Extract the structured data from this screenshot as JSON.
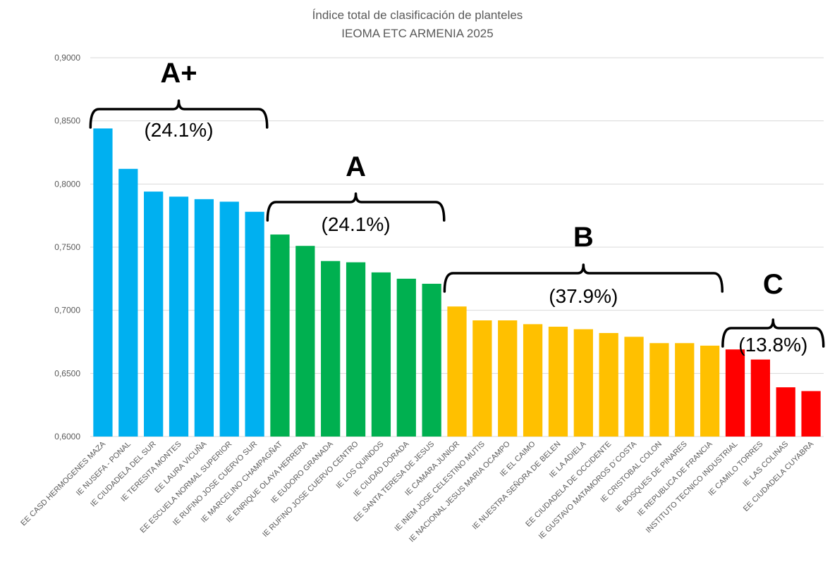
{
  "chart_data": {
    "type": "bar",
    "title": "Índice total de clasificación de planteles",
    "subtitle": "IEOMA ETC ARMENIA 2025",
    "xlabel": "",
    "ylabel": "",
    "ylim": [
      0.6,
      0.9
    ],
    "yticks": [
      "0,6000",
      "0,6500",
      "0,7000",
      "0,7500",
      "0,8000",
      "0,8500",
      "0,9000"
    ],
    "ytick_values": [
      0.6,
      0.65,
      0.7,
      0.75,
      0.8,
      0.85,
      0.9
    ],
    "grid": true,
    "legend": "none",
    "categories": [
      "EE CASD HERMOGENES MAZA",
      "IE NUSEFA - PONAL",
      "IE CIUDADELA DEL SUR",
      "IE TERESITA MONTES",
      "EE LAURA VICUÑA",
      "EE ESCUELA NORMAL SUPERIOR",
      "IE RUFINO JOSE CUERVO SUR",
      "IE MARCELINO CHAMPAGÑAT",
      "IE ENRIQUE OLAYA HERRERA",
      "IE EUDORO GRANADA",
      "IE RUFINO JOSE CUERVO CENTRO",
      "IE LOS QUINDOS",
      "IE CIUDAD DORADA",
      "EE SANTA TERESA DE JESUS",
      "IE CAMARA JUNIOR",
      "IE INEM JOSE CELESTINO MUTIS",
      "IE NACIONAL JESUS MARIA OCAMPO",
      "IE EL CAIMO",
      "IE NUESTRA SEÑORA DE BELEN",
      "IE LA ADIELA",
      "EE CIUDADELA DE OCCIDENTE",
      "IE GUSTAVO MATAMOROS D´COSTA",
      "IE CRISTOBAL COLON",
      "IE BOSQUES DE PINARES",
      "IE REPUBLICA DE FRANCIA",
      "INSTITUTO TECNICO INDUSTRIAL",
      "IE CAMILO TORRES",
      "IE LAS COLINAS",
      "EE CIUDADELA CUYABRA"
    ],
    "values": [
      0.844,
      0.812,
      0.794,
      0.79,
      0.788,
      0.786,
      0.778,
      0.76,
      0.751,
      0.739,
      0.738,
      0.73,
      0.725,
      0.721,
      0.703,
      0.692,
      0.692,
      0.689,
      0.687,
      0.685,
      0.682,
      0.679,
      0.674,
      0.674,
      0.672,
      0.669,
      0.661,
      0.639,
      0.636
    ],
    "bar_groups": [
      0,
      0,
      0,
      0,
      0,
      0,
      0,
      1,
      1,
      1,
      1,
      1,
      1,
      1,
      2,
      2,
      2,
      2,
      2,
      2,
      2,
      2,
      2,
      2,
      2,
      3,
      3,
      3,
      3
    ],
    "group_colors": [
      "#00b0f0",
      "#00b050",
      "#ffc000",
      "#ff0000"
    ],
    "annotations": [
      {
        "label": "A+",
        "percent": "(24.1%)",
        "first_bar": 0,
        "last_bar": 6
      },
      {
        "label": "A",
        "percent": "(24.1%)",
        "first_bar": 7,
        "last_bar": 13
      },
      {
        "label": "B",
        "percent": "(37.9%)",
        "first_bar": 14,
        "last_bar": 24
      },
      {
        "label": "C",
        "percent": "(13.8%)",
        "first_bar": 25,
        "last_bar": 28
      }
    ]
  },
  "colors": {
    "grid": "#d9d9d9",
    "axis_text": "#595959"
  }
}
